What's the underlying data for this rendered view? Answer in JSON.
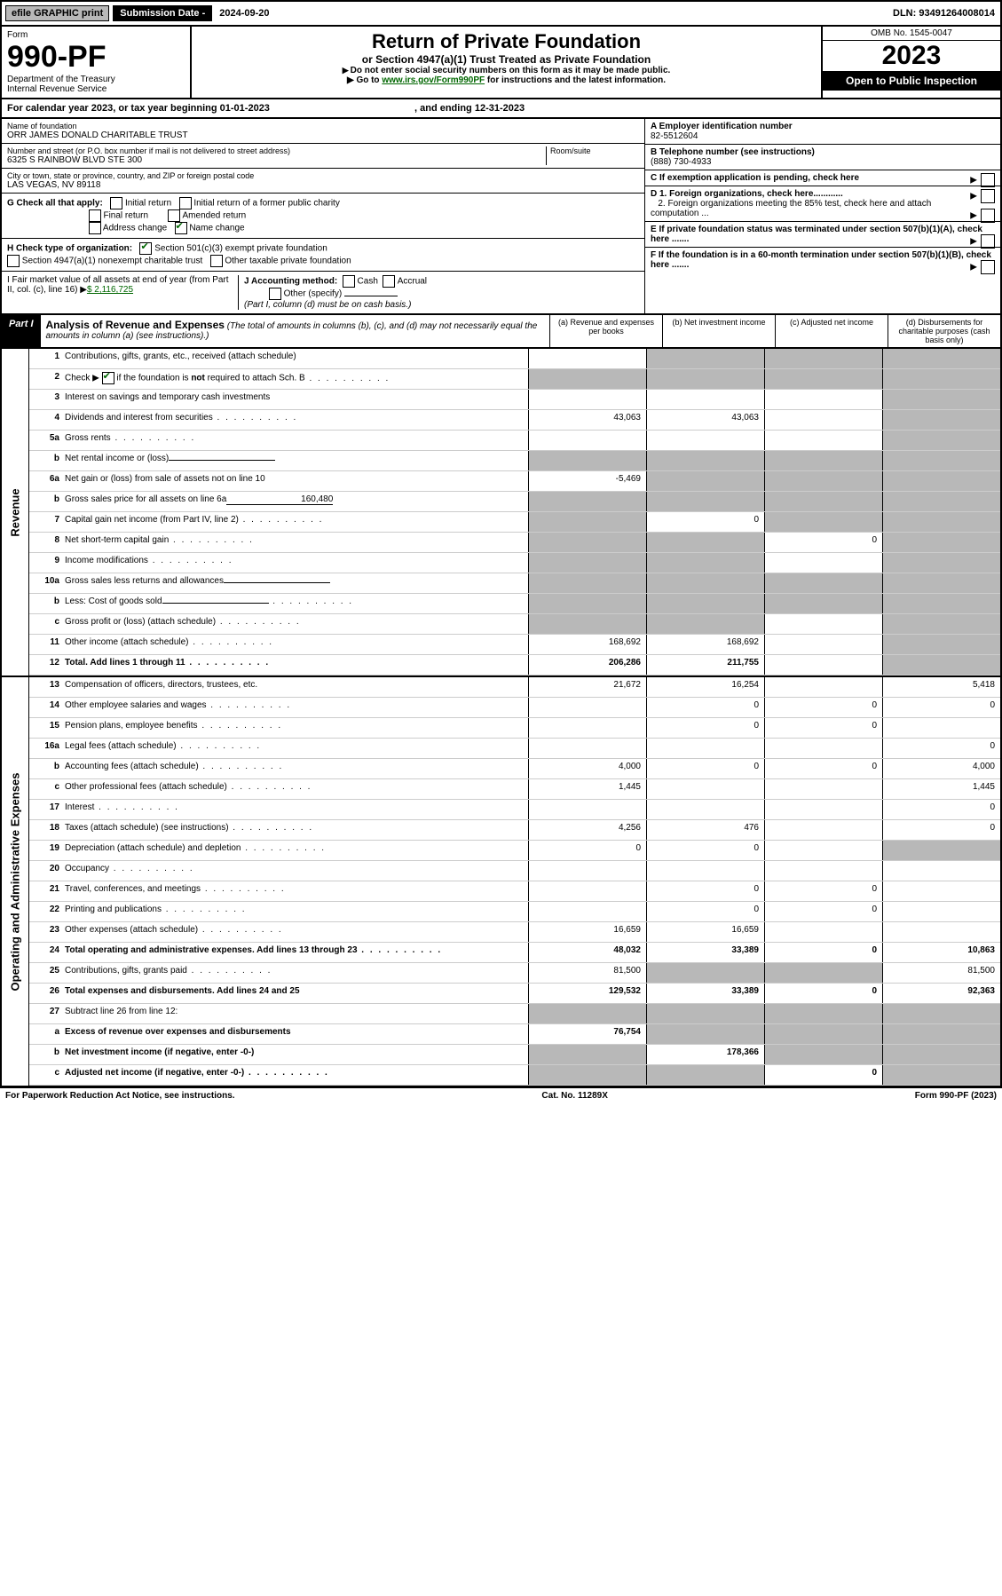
{
  "topbar": {
    "efile": "efile GRAPHIC print",
    "subm_lbl": "Submission Date - ",
    "subm_date": "2024-09-20",
    "dln": "DLN: 93491264008014"
  },
  "hdr": {
    "form_lbl": "Form",
    "form_num": "990-PF",
    "dept": "Department of the Treasury",
    "irs": "Internal Revenue Service",
    "title": "Return of Private Foundation",
    "sub": "or Section 4947(a)(1) Trust Treated as Private Foundation",
    "instr1": "Do not enter social security numbers on this form as it may be made public.",
    "instr2": "Go to ",
    "link": "www.irs.gov/Form990PF",
    "instr3": " for instructions and the latest information.",
    "omb": "OMB No. 1545-0047",
    "year": "2023",
    "open": "Open to Public Inspection"
  },
  "caly": {
    "a": "For calendar year 2023, or tax year beginning ",
    "b": "01-01-2023",
    "c": ", and ending ",
    "d": "12-31-2023"
  },
  "left": {
    "name_lbl": "Name of foundation",
    "name": "ORR JAMES DONALD CHARITABLE TRUST",
    "addr_lbl": "Number and street (or P.O. box number if mail is not delivered to street address)",
    "room_lbl": "Room/suite",
    "addr": "6325 S RAINBOW BLVD STE 300",
    "city_lbl": "City or town, state or province, country, and ZIP or foreign postal code",
    "city": "LAS VEGAS, NV  89118",
    "G": "G Check all that apply:",
    "g_opts": [
      "Initial return",
      "Initial return of a former public charity",
      "Final return",
      "Amended return",
      "Address change",
      "Name change"
    ],
    "H": "H Check type of organization:",
    "h1": "Section 501(c)(3) exempt private foundation",
    "h2": "Section 4947(a)(1) nonexempt charitable trust",
    "h3": "Other taxable private foundation",
    "I": "I Fair market value of all assets at end of year (from Part II, col. (c), line 16)",
    "I_val": "$  2,116,725",
    "J": "J Accounting method:",
    "j_cash": "Cash",
    "j_acc": "Accrual",
    "j_other": "Other (specify)",
    "j_note": "(Part I, column (d) must be on cash basis.)"
  },
  "right": {
    "A_lbl": "A Employer identification number",
    "A": "82-5512604",
    "B_lbl": "B Telephone number (see instructions)",
    "B": "(888) 730-4933",
    "C": "C If exemption application is pending, check here",
    "D1": "D 1. Foreign organizations, check here............",
    "D2": "2. Foreign organizations meeting the 85% test, check here and attach computation ...",
    "E": "E  If private foundation status was terminated under section 507(b)(1)(A), check here .......",
    "F": "F  If the foundation is in a 60-month termination under section 507(b)(1)(B), check here .......",
    "arrow": "▶"
  },
  "part": {
    "tag": "Part I",
    "title": "Analysis of Revenue and Expenses",
    "note": "(The total of amounts in columns (b), (c), and (d) may not necessarily equal the amounts in column (a) (see instructions).)",
    "ca": "(a)   Revenue and expenses per books",
    "cb": "(b)   Net investment income",
    "cc": "(c)   Adjusted net income",
    "cd": "(d)   Disbursements for charitable purposes (cash basis only)"
  },
  "rev_label": "Revenue",
  "op_label": "Operating and Administrative Expenses",
  "rows": [
    {
      "n": "1",
      "l": "Contributions, gifts, grants, etc., received (attach schedule)",
      "a": "",
      "b": "-",
      "c": "-",
      "d": "-"
    },
    {
      "n": "2",
      "l": "Check ▶ ☑ if the foundation is not required to attach Sch. B",
      "dots": 1,
      "a": "-",
      "b": "-",
      "c": "-",
      "d": "-"
    },
    {
      "n": "3",
      "l": "Interest on savings and temporary cash investments",
      "a": "",
      "b": "",
      "c": "",
      "d": "-"
    },
    {
      "n": "4",
      "l": "Dividends and interest from securities",
      "dots": 1,
      "a": "43,063",
      "b": "43,063",
      "c": "",
      "d": "-"
    },
    {
      "n": "5a",
      "l": "Gross rents",
      "dots": 1,
      "a": "",
      "b": "",
      "c": "",
      "d": "-"
    },
    {
      "n": "b",
      "l": "Net rental income or (loss)",
      "inline": 1,
      "a": "-",
      "b": "-",
      "c": "-",
      "d": "-"
    },
    {
      "n": "6a",
      "l": "Net gain or (loss) from sale of assets not on line 10",
      "a": "-5,469",
      "b": "-",
      "c": "-",
      "d": "-"
    },
    {
      "n": "b",
      "l": "Gross sales price for all assets on line 6a",
      "inline_val": "160,480",
      "a": "-",
      "b": "-",
      "c": "-",
      "d": "-"
    },
    {
      "n": "7",
      "l": "Capital gain net income (from Part IV, line 2)",
      "dots": 1,
      "a": "-",
      "b": "0",
      "c": "-",
      "d": "-"
    },
    {
      "n": "8",
      "l": "Net short-term capital gain",
      "dots": 1,
      "a": "-",
      "b": "-",
      "c": "0",
      "d": "-"
    },
    {
      "n": "9",
      "l": "Income modifications",
      "dots": 1,
      "a": "-",
      "b": "-",
      "c": "",
      "d": "-"
    },
    {
      "n": "10a",
      "l": "Gross sales less returns and allowances",
      "inline": 1,
      "a": "-",
      "b": "-",
      "c": "-",
      "d": "-"
    },
    {
      "n": "b",
      "l": "Less: Cost of goods sold",
      "dots": 1,
      "inline": 1,
      "a": "-",
      "b": "-",
      "c": "-",
      "d": "-"
    },
    {
      "n": "c",
      "l": "Gross profit or (loss) (attach schedule)",
      "dots": 1,
      "a": "-",
      "b": "-",
      "c": "",
      "d": "-"
    },
    {
      "n": "11",
      "l": "Other income (attach schedule)",
      "dots": 1,
      "a": "168,692",
      "b": "168,692",
      "c": "",
      "d": "-"
    },
    {
      "n": "12",
      "l": "Total. Add lines 1 through 11",
      "dots": 1,
      "tot": 1,
      "a": "206,286",
      "b": "211,755",
      "c": "",
      "d": "-"
    }
  ],
  "oprows": [
    {
      "n": "13",
      "l": "Compensation of officers, directors, trustees, etc.",
      "a": "21,672",
      "b": "16,254",
      "c": "",
      "d": "5,418"
    },
    {
      "n": "14",
      "l": "Other employee salaries and wages",
      "dots": 1,
      "a": "",
      "b": "0",
      "c": "0",
      "d": "0"
    },
    {
      "n": "15",
      "l": "Pension plans, employee benefits",
      "dots": 1,
      "a": "",
      "b": "0",
      "c": "0",
      "d": ""
    },
    {
      "n": "16a",
      "l": "Legal fees (attach schedule)",
      "dots": 1,
      "a": "",
      "b": "",
      "c": "",
      "d": "0"
    },
    {
      "n": "b",
      "l": "Accounting fees (attach schedule)",
      "dots": 1,
      "a": "4,000",
      "b": "0",
      "c": "0",
      "d": "4,000"
    },
    {
      "n": "c",
      "l": "Other professional fees (attach schedule)",
      "dots": 1,
      "a": "1,445",
      "b": "",
      "c": "",
      "d": "1,445"
    },
    {
      "n": "17",
      "l": "Interest",
      "dots": 1,
      "a": "",
      "b": "",
      "c": "",
      "d": "0"
    },
    {
      "n": "18",
      "l": "Taxes (attach schedule) (see instructions)",
      "dots": 1,
      "a": "4,256",
      "b": "476",
      "c": "",
      "d": "0"
    },
    {
      "n": "19",
      "l": "Depreciation (attach schedule) and depletion",
      "dots": 1,
      "a": "0",
      "b": "0",
      "c": "",
      "d": "-"
    },
    {
      "n": "20",
      "l": "Occupancy",
      "dots": 1,
      "a": "",
      "b": "",
      "c": "",
      "d": ""
    },
    {
      "n": "21",
      "l": "Travel, conferences, and meetings",
      "dots": 1,
      "a": "",
      "b": "0",
      "c": "0",
      "d": ""
    },
    {
      "n": "22",
      "l": "Printing and publications",
      "dots": 1,
      "a": "",
      "b": "0",
      "c": "0",
      "d": ""
    },
    {
      "n": "23",
      "l": "Other expenses (attach schedule)",
      "dots": 1,
      "a": "16,659",
      "b": "16,659",
      "c": "",
      "d": ""
    },
    {
      "n": "24",
      "l": "Total operating and administrative expenses. Add lines 13 through 23",
      "dots": 1,
      "tot": 1,
      "a": "48,032",
      "b": "33,389",
      "c": "0",
      "d": "10,863"
    },
    {
      "n": "25",
      "l": "Contributions, gifts, grants paid",
      "dots": 1,
      "a": "81,500",
      "b": "-",
      "c": "-",
      "d": "81,500"
    },
    {
      "n": "26",
      "l": "Total expenses and disbursements. Add lines 24 and 25",
      "tot": 1,
      "a": "129,532",
      "b": "33,389",
      "c": "0",
      "d": "92,363"
    },
    {
      "n": "27",
      "l": "Subtract line 26 from line 12:",
      "a": "-",
      "b": "-",
      "c": "-",
      "d": "-"
    },
    {
      "n": "a",
      "l": "Excess of revenue over expenses and disbursements",
      "tot": 1,
      "a": "76,754",
      "b": "-",
      "c": "-",
      "d": "-"
    },
    {
      "n": "b",
      "l": "Net investment income (if negative, enter -0-)",
      "tot": 1,
      "a": "-",
      "b": "178,366",
      "c": "-",
      "d": "-"
    },
    {
      "n": "c",
      "l": "Adjusted net income (if negative, enter -0-)",
      "dots": 1,
      "tot": 1,
      "a": "-",
      "b": "-",
      "c": "0",
      "d": "-"
    }
  ],
  "foot": {
    "a": "For Paperwork Reduction Act Notice, see instructions.",
    "b": "Cat. No. 11289X",
    "c": "Form 990-PF (2023)"
  }
}
